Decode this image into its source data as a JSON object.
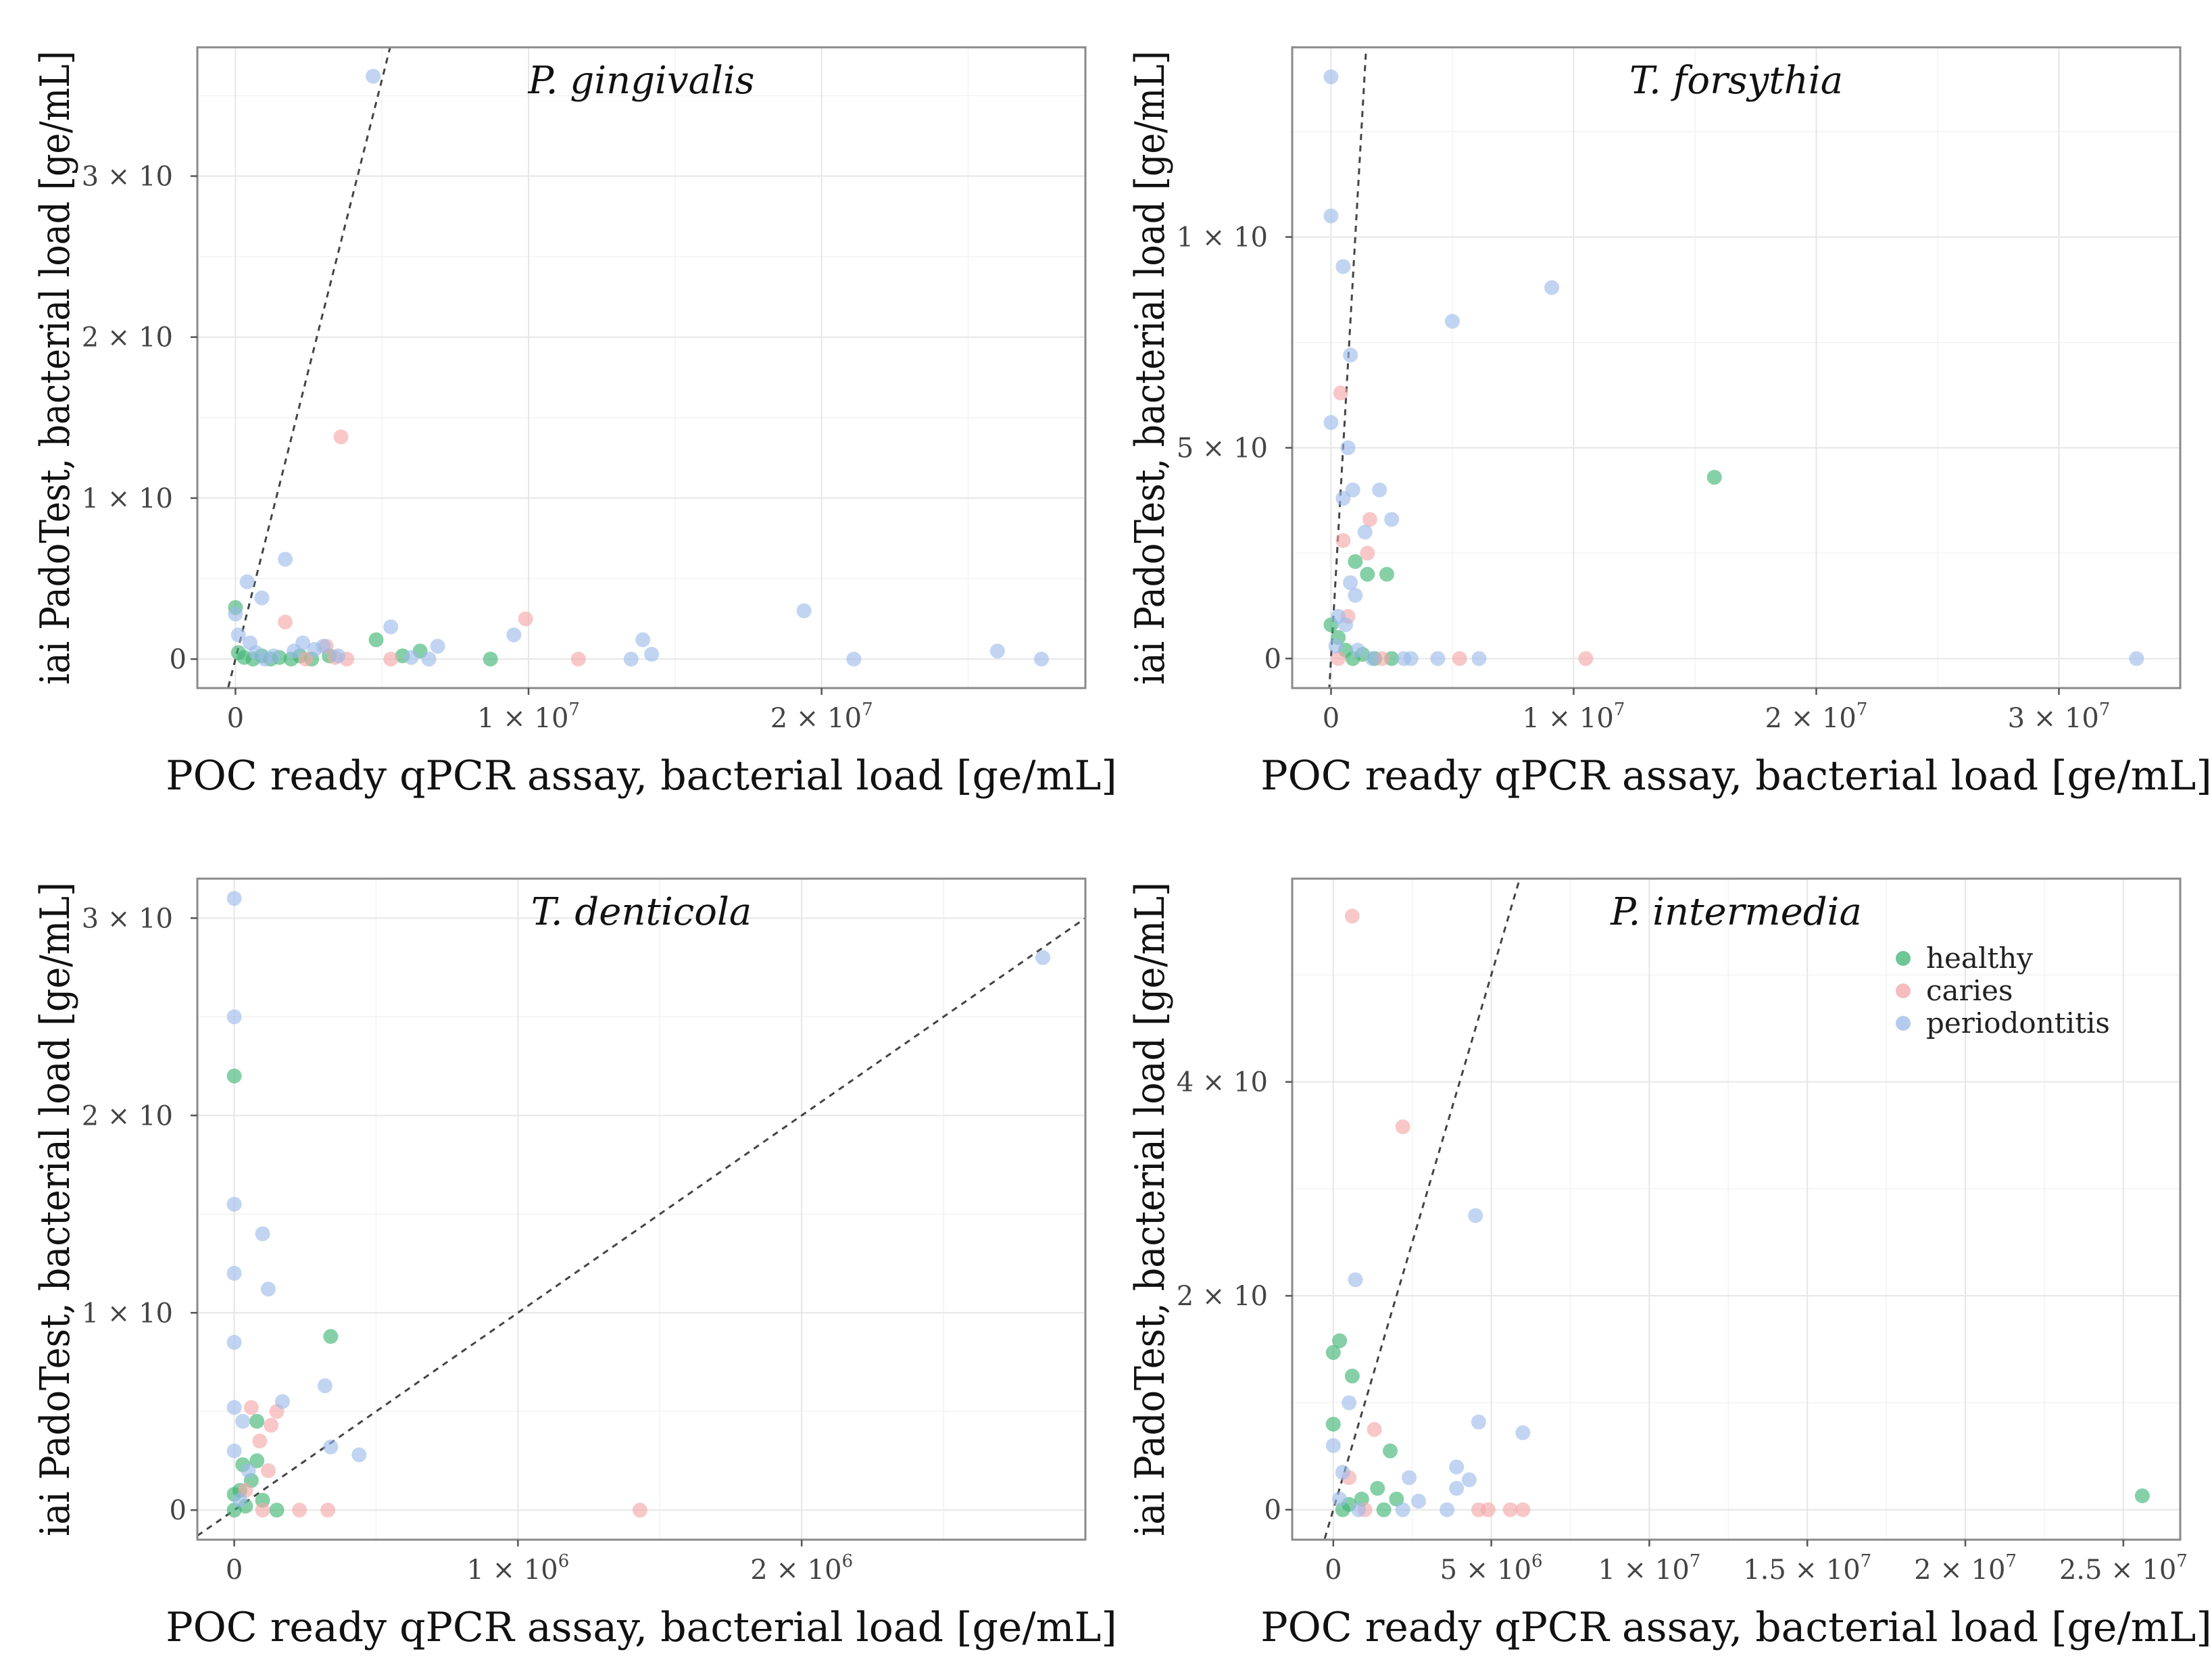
{
  "figure": {
    "legend_title": "",
    "legend_entries": [
      "healthy",
      "caries",
      "periodontitis"
    ]
  },
  "colors": {
    "healthy": "#3cb371",
    "caries": "#f4a6a8",
    "periodontitis": "#9bb9ea",
    "dashed_line": "#444444"
  },
  "chart_data": [
    {
      "type": "scatter",
      "title": "P. gingivalis",
      "xlabel": "POC ready qPCR assay, bacterial load [ge/mL]",
      "ylabel": "iai PadoTest, bacterial load [ge/mL]",
      "xlim": [
        -1300000,
        29000000
      ],
      "ylim": [
        -180000,
        3800000
      ],
      "x_ticks": [
        {
          "v": 0,
          "label": "0"
        },
        {
          "v": 10000000,
          "label": "1 × 10",
          "exp": "7"
        },
        {
          "v": 20000000,
          "label": "2 × 10",
          "exp": "7"
        }
      ],
      "y_ticks": [
        {
          "v": 0,
          "label": "0"
        },
        {
          "v": 1000000,
          "label": "1 × 10",
          "exp": "6"
        },
        {
          "v": 2000000,
          "label": "2 × 10",
          "exp": "6"
        },
        {
          "v": 3000000,
          "label": "3 × 10",
          "exp": "6"
        }
      ],
      "reference_line": {
        "slope": 0.72
      },
      "series": [
        {
          "name": "healthy",
          "points": [
            [
              0,
              320000
            ],
            [
              100000,
              40000
            ],
            [
              300000,
              10000
            ],
            [
              600000,
              0
            ],
            [
              900000,
              20000
            ],
            [
              1200000,
              0
            ],
            [
              1500000,
              10000
            ],
            [
              1900000,
              0
            ],
            [
              2200000,
              20000
            ],
            [
              2600000,
              0
            ],
            [
              3200000,
              20000
            ],
            [
              4800000,
              120000
            ],
            [
              5700000,
              20000
            ],
            [
              6300000,
              50000
            ],
            [
              8700000,
              0
            ]
          ]
        },
        {
          "name": "caries",
          "points": [
            [
              1700000,
              230000
            ],
            [
              2400000,
              0
            ],
            [
              3100000,
              80000
            ],
            [
              3600000,
              1380000
            ],
            [
              3400000,
              10000
            ],
            [
              3800000,
              0
            ],
            [
              5300000,
              0
            ],
            [
              9900000,
              250000
            ],
            [
              11700000,
              0
            ]
          ]
        },
        {
          "name": "periodontitis",
          "points": [
            [
              4700000,
              3620000
            ],
            [
              1700000,
              620000
            ],
            [
              400000,
              480000
            ],
            [
              900000,
              380000
            ],
            [
              0,
              280000
            ],
            [
              100000,
              150000
            ],
            [
              500000,
              100000
            ],
            [
              700000,
              40000
            ],
            [
              1000000,
              0
            ],
            [
              1300000,
              20000
            ],
            [
              2000000,
              50000
            ],
            [
              2300000,
              100000
            ],
            [
              2700000,
              60000
            ],
            [
              3000000,
              80000
            ],
            [
              3500000,
              20000
            ],
            [
              5300000,
              200000
            ],
            [
              6000000,
              10000
            ],
            [
              6600000,
              0
            ],
            [
              6900000,
              80000
            ],
            [
              9500000,
              150000
            ],
            [
              13500000,
              0
            ],
            [
              13900000,
              120000
            ],
            [
              14200000,
              30000
            ],
            [
              19400000,
              300000
            ],
            [
              21100000,
              0
            ],
            [
              26000000,
              50000
            ],
            [
              27500000,
              0
            ]
          ]
        }
      ]
    },
    {
      "type": "scatter",
      "title": "T. forsythia",
      "xlabel": "POC ready qPCR assay, bacterial load [ge/mL]",
      "ylabel": "iai PadoTest, bacterial load [ge/mL]",
      "xlim": [
        -1600000,
        35000000
      ],
      "ylim": [
        -70000,
        1450000
      ],
      "x_ticks": [
        {
          "v": 0,
          "label": "0"
        },
        {
          "v": 10000000,
          "label": "1 × 10",
          "exp": "7"
        },
        {
          "v": 20000000,
          "label": "2 × 10",
          "exp": "7"
        },
        {
          "v": 30000000,
          "label": "3 × 10",
          "exp": "7"
        }
      ],
      "y_ticks": [
        {
          "v": 0,
          "label": "0"
        },
        {
          "v": 500000,
          "label": "5 × 10",
          "exp": "5"
        },
        {
          "v": 1000000,
          "label": "1 × 10",
          "exp": "6"
        }
      ],
      "reference_line": {
        "slope": 1.0
      },
      "series": [
        {
          "name": "healthy",
          "points": [
            [
              15800000,
              430000
            ],
            [
              1000000,
              230000
            ],
            [
              1500000,
              200000
            ],
            [
              2300000,
              200000
            ],
            [
              0,
              80000
            ],
            [
              300000,
              50000
            ],
            [
              600000,
              20000
            ],
            [
              900000,
              0
            ],
            [
              1300000,
              10000
            ],
            [
              1800000,
              0
            ],
            [
              2500000,
              0
            ]
          ]
        },
        {
          "name": "caries",
          "points": [
            [
              400000,
              630000
            ],
            [
              500000,
              280000
            ],
            [
              1600000,
              330000
            ],
            [
              1500000,
              250000
            ],
            [
              2100000,
              0
            ],
            [
              5300000,
              0
            ],
            [
              10500000,
              0
            ],
            [
              700000,
              100000
            ],
            [
              300000,
              0
            ]
          ]
        },
        {
          "name": "periodontitis",
          "points": [
            [
              0,
              1380000
            ],
            [
              0,
              1050000
            ],
            [
              500000,
              930000
            ],
            [
              800000,
              720000
            ],
            [
              0,
              560000
            ],
            [
              700000,
              500000
            ],
            [
              500000,
              380000
            ],
            [
              900000,
              400000
            ],
            [
              2000000,
              400000
            ],
            [
              2500000,
              330000
            ],
            [
              1400000,
              300000
            ],
            [
              800000,
              180000
            ],
            [
              1000000,
              150000
            ],
            [
              300000,
              100000
            ],
            [
              600000,
              80000
            ],
            [
              200000,
              30000
            ],
            [
              1100000,
              20000
            ],
            [
              1700000,
              0
            ],
            [
              3000000,
              0
            ],
            [
              3300000,
              0
            ],
            [
              4400000,
              0
            ],
            [
              5000000,
              800000
            ],
            [
              6100000,
              0
            ],
            [
              9100000,
              880000
            ],
            [
              33200000,
              0
            ]
          ]
        }
      ]
    },
    {
      "type": "scatter",
      "title": "T. denticola",
      "xlabel": "POC ready qPCR assay, bacterial load [ge/mL]",
      "ylabel": "iai PadoTest, bacterial load [ge/mL]",
      "xlim": [
        -130000,
        3000000
      ],
      "ylim": [
        -150000,
        3200000
      ],
      "x_ticks": [
        {
          "v": 0,
          "label": "0"
        },
        {
          "v": 1000000,
          "label": "1 × 10",
          "exp": "6"
        },
        {
          "v": 2000000,
          "label": "2 × 10",
          "exp": "6"
        }
      ],
      "y_ticks": [
        {
          "v": 0,
          "label": "0"
        },
        {
          "v": 1000000,
          "label": "1 × 10",
          "exp": "6"
        },
        {
          "v": 2000000,
          "label": "2 × 10",
          "exp": "6"
        },
        {
          "v": 3000000,
          "label": "3 × 10",
          "exp": "6"
        }
      ],
      "reference_line": {
        "slope": 1.0
      },
      "series": [
        {
          "name": "healthy",
          "points": [
            [
              0,
              2200000
            ],
            [
              340000,
              880000
            ],
            [
              80000,
              450000
            ],
            [
              30000,
              230000
            ],
            [
              60000,
              150000
            ],
            [
              0,
              80000
            ],
            [
              100000,
              50000
            ],
            [
              150000,
              0
            ],
            [
              0,
              0
            ],
            [
              40000,
              20000
            ],
            [
              20000,
              100000
            ],
            [
              80000,
              250000
            ]
          ]
        },
        {
          "name": "caries",
          "points": [
            [
              60000,
              520000
            ],
            [
              150000,
              500000
            ],
            [
              130000,
              430000
            ],
            [
              90000,
              350000
            ],
            [
              120000,
              200000
            ],
            [
              40000,
              100000
            ],
            [
              230000,
              0
            ],
            [
              330000,
              0
            ],
            [
              1430000,
              0
            ],
            [
              100000,
              0
            ]
          ]
        },
        {
          "name": "periodontitis",
          "points": [
            [
              0,
              3100000
            ],
            [
              0,
              2500000
            ],
            [
              0,
              1550000
            ],
            [
              100000,
              1400000
            ],
            [
              0,
              1200000
            ],
            [
              120000,
              1120000
            ],
            [
              0,
              850000
            ],
            [
              320000,
              630000
            ],
            [
              170000,
              550000
            ],
            [
              0,
              520000
            ],
            [
              30000,
              450000
            ],
            [
              340000,
              320000
            ],
            [
              440000,
              280000
            ],
            [
              0,
              300000
            ],
            [
              50000,
              200000
            ],
            [
              20000,
              50000
            ],
            [
              2850000,
              2800000
            ]
          ]
        }
      ]
    },
    {
      "type": "scatter",
      "title": "P. intermedia",
      "xlabel": "POC ready qPCR assay, bacterial load [ge/mL]",
      "ylabel": "iai PadoTest, bacterial load [ge/mL]",
      "xlim": [
        -1300000,
        26800000
      ],
      "ylim": [
        -280000,
        5900000
      ],
      "x_ticks": [
        {
          "v": 0,
          "label": "0"
        },
        {
          "v": 5000000,
          "label": "5 × 10",
          "exp": "6"
        },
        {
          "v": 10000000,
          "label": "1 × 10",
          "exp": "7"
        },
        {
          "v": 15000000,
          "label": "1.5 × 10",
          "exp": "7"
        },
        {
          "v": 20000000,
          "label": "2 × 10",
          "exp": "7"
        },
        {
          "v": 25000000,
          "label": "2.5 × 10",
          "exp": "7"
        }
      ],
      "y_ticks": [
        {
          "v": 0,
          "label": "0"
        },
        {
          "v": 2000000,
          "label": "2 × 10",
          "exp": "6"
        },
        {
          "v": 4000000,
          "label": "4 × 10",
          "exp": "6"
        }
      ],
      "reference_line": {
        "slope": 1.0
      },
      "legend": {
        "position": "top-right"
      },
      "series": [
        {
          "name": "healthy",
          "points": [
            [
              200000,
              1580000
            ],
            [
              0,
              1470000
            ],
            [
              600000,
              1250000
            ],
            [
              0,
              800000
            ],
            [
              1800000,
              550000
            ],
            [
              1400000,
              200000
            ],
            [
              900000,
              100000
            ],
            [
              500000,
              50000
            ],
            [
              1600000,
              0
            ],
            [
              2000000,
              100000
            ],
            [
              300000,
              0
            ],
            [
              25600000,
              130000
            ]
          ]
        },
        {
          "name": "caries",
          "points": [
            [
              600000,
              5550000
            ],
            [
              2200000,
              3580000
            ],
            [
              1300000,
              750000
            ],
            [
              500000,
              300000
            ],
            [
              1000000,
              0
            ],
            [
              4600000,
              0
            ],
            [
              4900000,
              0
            ],
            [
              5600000,
              0
            ],
            [
              6000000,
              0
            ]
          ]
        },
        {
          "name": "periodontitis",
          "points": [
            [
              700000,
              2150000
            ],
            [
              4500000,
              2750000
            ],
            [
              500000,
              1000000
            ],
            [
              4600000,
              820000
            ],
            [
              6000000,
              720000
            ],
            [
              0,
              600000
            ],
            [
              3900000,
              400000
            ],
            [
              2400000,
              300000
            ],
            [
              4300000,
              280000
            ],
            [
              3900000,
              200000
            ],
            [
              300000,
              350000
            ],
            [
              200000,
              100000
            ],
            [
              2700000,
              80000
            ],
            [
              3600000,
              0
            ],
            [
              800000,
              0
            ],
            [
              2200000,
              0
            ]
          ]
        }
      ]
    }
  ]
}
